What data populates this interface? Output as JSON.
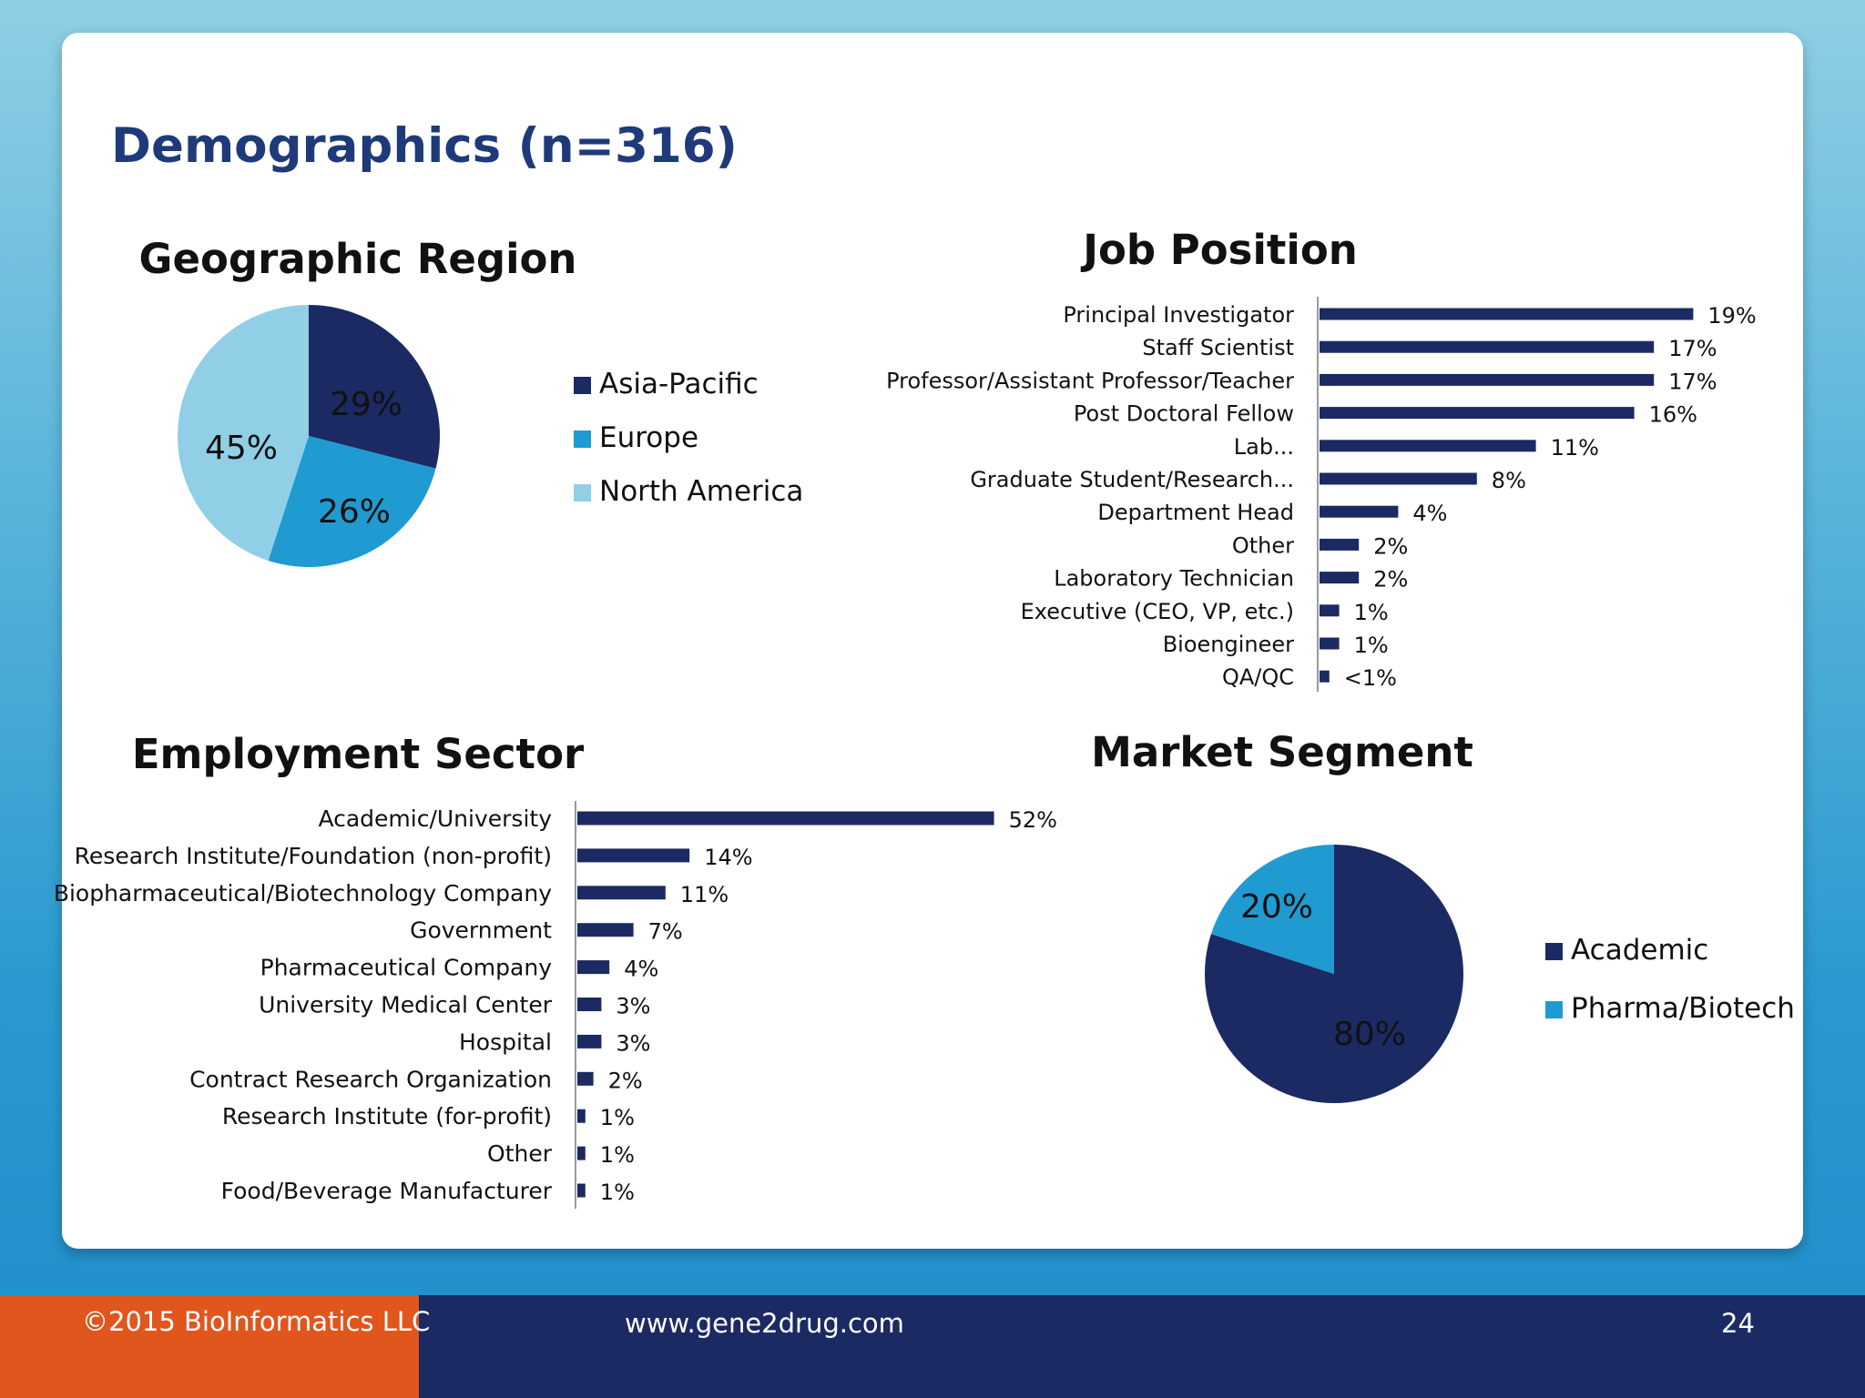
{
  "page": {
    "title": "Demographics (n=316)",
    "footer": {
      "copyright": "©2015 BioInformatics LLC",
      "website": "www.gene2drug.com",
      "page_number": "24"
    }
  },
  "colors": {
    "navy": "#1b2a63",
    "blue": "#1f9bd1",
    "light_blue": "#90cfe6",
    "orange": "#e0561d"
  },
  "chart_data": [
    {
      "id": "geographic",
      "type": "pie",
      "title": "Geographic Region",
      "slices": [
        {
          "label": "Asia-Pacific",
          "value": 29,
          "label_text": "29%",
          "color": "#1b2a63"
        },
        {
          "label": "Europe",
          "value": 26,
          "label_text": "26%",
          "color": "#1f9bd1"
        },
        {
          "label": "North America",
          "value": 45,
          "label_text": "45%",
          "color": "#90cfe6"
        }
      ],
      "legend": "right"
    },
    {
      "id": "job",
      "type": "bar",
      "orientation": "horizontal",
      "title": "Job Position",
      "categories": [
        "Principal Investigator",
        "Staff Scientist",
        "Professor/Assistant Professor/Teacher",
        "Post Doctoral Fellow",
        "Lab...",
        "Graduate Student/Research...",
        "Department Head",
        "Other",
        "Laboratory Technician",
        "Executive (CEO, VP, etc.)",
        "Bioengineer",
        "QA/QC"
      ],
      "values": [
        19,
        17,
        17,
        16,
        11,
        8,
        4,
        2,
        2,
        1,
        1,
        0.5
      ],
      "value_labels": [
        "19%",
        "17%",
        "17%",
        "16%",
        "11%",
        "8%",
        "4%",
        "2%",
        "2%",
        "1%",
        "1%",
        "<1%"
      ],
      "color": "#1b2a63"
    },
    {
      "id": "employment",
      "type": "bar",
      "orientation": "horizontal",
      "title": "Employment Sector",
      "categories": [
        "Academic/University",
        "Research Institute/Foundation (non-profit)",
        "Biopharmaceutical/Biotechnology Company",
        "Government",
        "Pharmaceutical Company",
        "University Medical Center",
        "Hospital",
        "Contract Research Organization",
        "Research Institute (for-profit)",
        "Other",
        "Food/Beverage Manufacturer"
      ],
      "values": [
        52,
        14,
        11,
        7,
        4,
        3,
        3,
        2,
        1,
        1,
        1
      ],
      "value_labels": [
        "52%",
        "14%",
        "11%",
        "7%",
        "4%",
        "3%",
        "3%",
        "2%",
        "1%",
        "1%",
        "1%"
      ],
      "color": "#1b2a63"
    },
    {
      "id": "market",
      "type": "pie",
      "title": "Market Segment",
      "slices": [
        {
          "label": "Academic",
          "value": 80,
          "label_text": "80%",
          "color": "#1b2a63"
        },
        {
          "label": "Pharma/Biotech",
          "value": 20,
          "label_text": "20%",
          "color": "#1f9bd1"
        }
      ],
      "legend": "right"
    }
  ]
}
